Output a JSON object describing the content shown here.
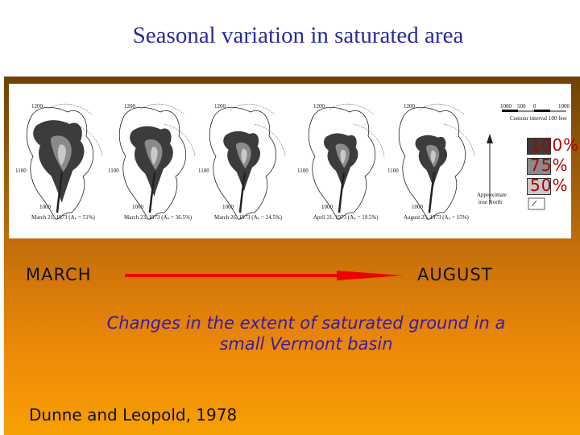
{
  "title": "Seasonal variation in saturated area",
  "figure": {
    "scale_ticks": [
      "1000",
      "500",
      "0",
      "1000"
    ],
    "scale_caption": "Contour interval 100 feet",
    "north_label_1": "Approximate",
    "north_label_2": "true North",
    "maps": [
      {
        "date": "March 21, 1973 (Aₛ = 51%)",
        "saturated_fraction": 0.51,
        "contours": [
          "1200",
          "1100",
          "1000"
        ]
      },
      {
        "date": "March 23, 1973 (Aₛ = 36.5%)",
        "saturated_fraction": 0.365,
        "contours": [
          "1200",
          "1100",
          "1000"
        ]
      },
      {
        "date": "March 26, 1973 (Aₛ = 24.5%)",
        "saturated_fraction": 0.245,
        "contours": [
          "1200",
          "1100",
          "1000"
        ]
      },
      {
        "date": "April 21, 1973 (Aₛ = 19.5%)",
        "saturated_fraction": 0.195,
        "contours": [
          "1200",
          "1100",
          "1000"
        ]
      },
      {
        "date": "August 25, 1973 (Aₛ = 15%)",
        "saturated_fraction": 0.15,
        "contours": [
          "1200",
          "1100",
          "1000"
        ]
      }
    ]
  },
  "legend": [
    {
      "label": "100%",
      "color": "#3c3c3c"
    },
    {
      "label": "75%",
      "color": "#8a8a8a"
    },
    {
      "label": "50%",
      "color": "#c9c9c9"
    }
  ],
  "timeline": {
    "start_label": "MARCH",
    "end_label": "AUGUST",
    "arrow_color": "#ee0000"
  },
  "caption_line1": "Changes in the extent of saturated ground in a",
  "caption_line2": "small Vermont basin",
  "citation": "Dunne and  Leopold, 1978"
}
